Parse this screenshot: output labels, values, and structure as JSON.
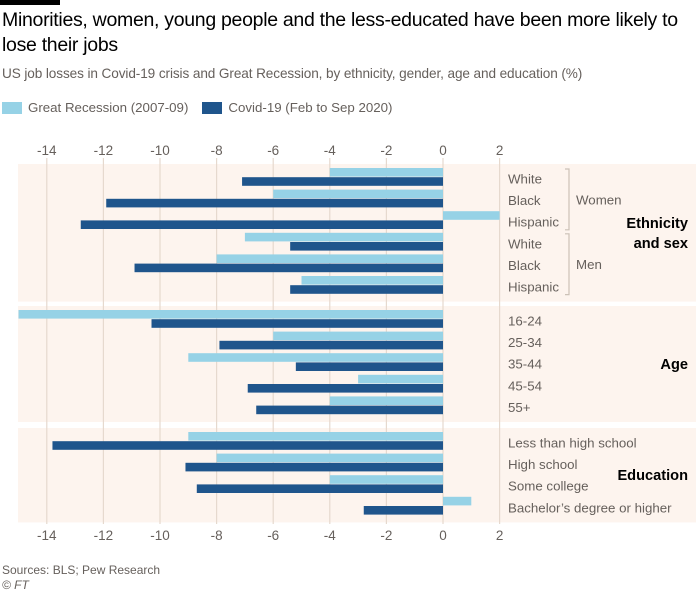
{
  "header": {
    "title": "Minorities, women, young people and the less-educated have been more likely to lose their jobs",
    "subtitle": "US job losses in Covid-19 crisis and Great Recession, by ethnicity, gender, age and education (%)"
  },
  "legend": [
    {
      "label": "Great Recession (2007-09)",
      "color": "#96d2e6"
    },
    {
      "label": "Covid-19 (Feb to Sep 2020)",
      "color": "#1f558c"
    }
  ],
  "footer": {
    "source": "Sources: BLS; Pew Research",
    "copyright": "© FT"
  },
  "chart_data": {
    "type": "bar",
    "orientation": "horizontal",
    "title": "Minorities, women, young people and the less-educated have been more likely to lose their jobs",
    "subtitle": "US job losses in Covid-19 crisis and Great Recession, by ethnicity, gender, age and education (%)",
    "xlabel": "",
    "ylabel": "",
    "xlim": [
      -15,
      2
    ],
    "xticks": [
      -14,
      -12,
      -10,
      -8,
      -6,
      -4,
      -2,
      0,
      2
    ],
    "grid": true,
    "legend_position": "top-left",
    "series_names": [
      "Great Recession (2007-09)",
      "Covid-19 (Feb to Sep 2020)"
    ],
    "colors": {
      "Great Recession (2007-09)": "#96d2e6",
      "Covid-19 (Feb to Sep 2020)": "#1f558c"
    },
    "panel_background": "#fdf4ee",
    "groups": [
      {
        "name": "Ethnicity and sex",
        "label_lines": [
          "Ethnicity",
          "and sex"
        ],
        "subgroups": [
          {
            "name": "Women",
            "categories": [
              "White",
              "Black",
              "Hispanic"
            ]
          },
          {
            "name": "Men",
            "categories": [
              "White",
              "Black",
              "Hispanic"
            ]
          }
        ],
        "categories": [
          "White",
          "Black",
          "Hispanic",
          "White",
          "Black",
          "Hispanic"
        ],
        "series": [
          {
            "name": "Great Recession (2007-09)",
            "values": [
              -4.0,
              -6.0,
              2.0,
              -7.0,
              -8.0,
              -5.0
            ]
          },
          {
            "name": "Covid-19 (Feb to Sep 2020)",
            "values": [
              -7.1,
              -11.9,
              -12.8,
              -5.4,
              -10.9,
              -5.4
            ]
          }
        ]
      },
      {
        "name": "Age",
        "label_lines": [
          "Age"
        ],
        "subgroups": [],
        "categories": [
          "16-24",
          "25-34",
          "35-44",
          "45-54",
          "55+"
        ],
        "series": [
          {
            "name": "Great Recession (2007-09)",
            "values": [
              -15.0,
              -6.0,
              -9.0,
              -3.0,
              -4.0
            ]
          },
          {
            "name": "Covid-19 (Feb to Sep 2020)",
            "values": [
              -10.3,
              -7.9,
              -5.2,
              -6.9,
              -6.6
            ]
          }
        ]
      },
      {
        "name": "Education",
        "label_lines": [
          "Education"
        ],
        "subgroups": [],
        "categories": [
          "Less than high school",
          "High school",
          "Some college",
          "Bachelor’s degree or higher"
        ],
        "series": [
          {
            "name": "Great Recession (2007-09)",
            "values": [
              -9.0,
              -8.0,
              -4.0,
              1.0
            ]
          },
          {
            "name": "Covid-19 (Feb to Sep 2020)",
            "values": [
              -13.8,
              -9.1,
              -8.7,
              -2.8
            ]
          }
        ]
      }
    ]
  }
}
